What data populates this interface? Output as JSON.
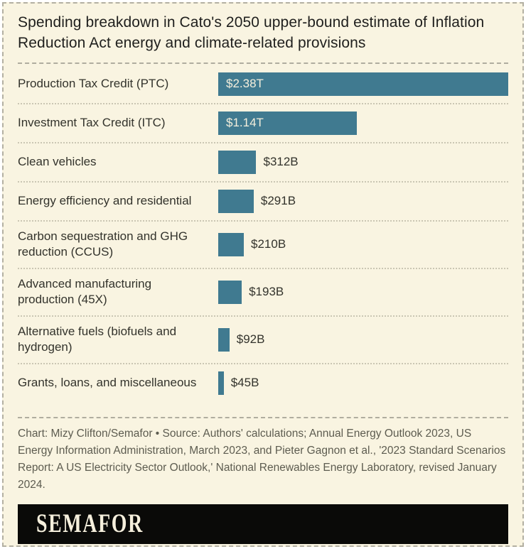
{
  "colors": {
    "background": "#f9f4e1",
    "bar": "#407a90",
    "title_text": "#1f1f1d",
    "label_text": "#33332c",
    "value_inside_text": "#f4efdc",
    "credits_text": "#5d5c50",
    "banner_background": "#0a0a08",
    "banner_text": "#f5efdc"
  },
  "title": "Spending breakdown in Cato's 2050 upper-bound estimate of Inflation Reduction Act energy and climate-related provisions",
  "chart_data": {
    "type": "bar",
    "orientation": "horizontal",
    "title": "Spending breakdown in Cato's 2050 upper-bound estimate of Inflation Reduction Act energy and climate-related provisions",
    "categories": [
      "Production Tax Credit (PTC)",
      "Investment Tax Credit (ITC)",
      "Clean vehicles",
      "Energy efficiency and residential",
      "Carbon sequestration and GHG reduction (CCUS)",
      "Advanced manufacturing production (45X)",
      "Alternative fuels (biofuels and hydrogen)",
      "Grants, loans, and miscellaneous"
    ],
    "values": [
      2380,
      1140,
      312,
      291,
      210,
      193,
      92,
      45
    ],
    "units": "billions of USD",
    "value_labels": [
      "$2.38T",
      "$1.14T",
      "$312B",
      "$291B",
      "$210B",
      "$193B",
      "$92B",
      "$45B"
    ],
    "value_label_positions": [
      "inside",
      "inside",
      "outside",
      "outside",
      "outside",
      "outside",
      "outside",
      "outside"
    ],
    "xlim": [
      0,
      2380
    ],
    "grid": false,
    "legend": false,
    "bar_color": "#407a90"
  },
  "credits": "Chart: Mizy Clifton/Semafor • Source: Authors' calculations; Annual Energy Outlook 2023, US Energy Information Administration, March 2023, and Pieter Gagnon et al., '2023 Standard Scenarios Report: A US Electricity Sector Outlook,' National Renewables Energy Laboratory, revised January 2024.",
  "logo_text": "SEMAFOR"
}
